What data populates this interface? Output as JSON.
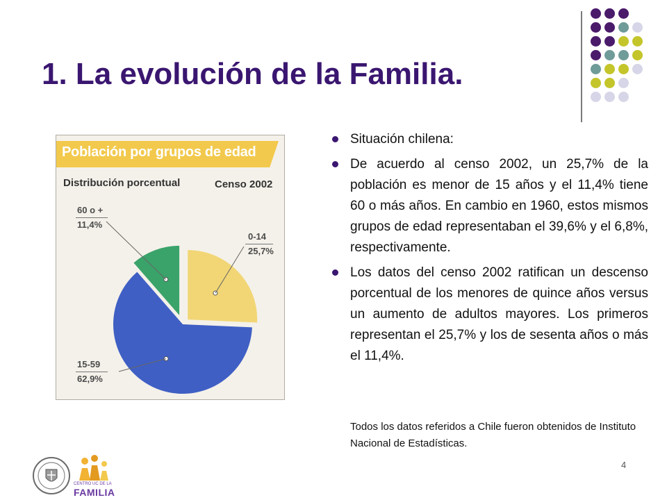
{
  "slide": {
    "title": "1. La evolución de la Familia.",
    "page_number": "4"
  },
  "decoration": {
    "dot_colors": {
      "purple": "#4a1a6b",
      "teal": "#6f9b98",
      "olive": "#c4c52a",
      "lavender": "#d6d6e8"
    }
  },
  "chart_card": {
    "banner": "Población por grupos de edad",
    "subtitle": "Distribución porcentual",
    "census": "Censo 2002"
  },
  "chart_data": {
    "type": "pie",
    "title": "Población por grupos de edad",
    "subtitle": "Distribución porcentual",
    "annotation": "Censo 2002",
    "slices": [
      {
        "label": "0-14",
        "value": 25.7,
        "value_label": "25,7%",
        "color": "#f2d675",
        "exploded": false
      },
      {
        "label": "15-59",
        "value": 62.9,
        "value_label": "62,9%",
        "color": "#3f5fc4",
        "exploded": false
      },
      {
        "label": "60 o +",
        "value": 11.4,
        "value_label": "11,4%",
        "color": "#3aa36a",
        "exploded": true
      }
    ]
  },
  "content": {
    "bullets": [
      "Situación chilena:",
      "De acuerdo al censo 2002, un 25,7% de la población es menor de 15 años y el 11,4% tiene 60 o más años. En cambio en 1960, estos mismos grupos de edad representaban el 39,6% y el 6,8%, respectivamente.",
      "Los datos del censo 2002 ratifican un descenso porcentual de los menores de quince años versus un aumento de adultos mayores. Los primeros representan el 25,7% y los de sesenta años o más el 11,4%."
    ],
    "source_note": "Todos los datos  referidos a Chile fueron obtenidos de Instituto Nacional de Estadísticas."
  },
  "logos": {
    "centro_small": "CENTRO UC DE LA",
    "centro_big": "FAMILIA"
  }
}
